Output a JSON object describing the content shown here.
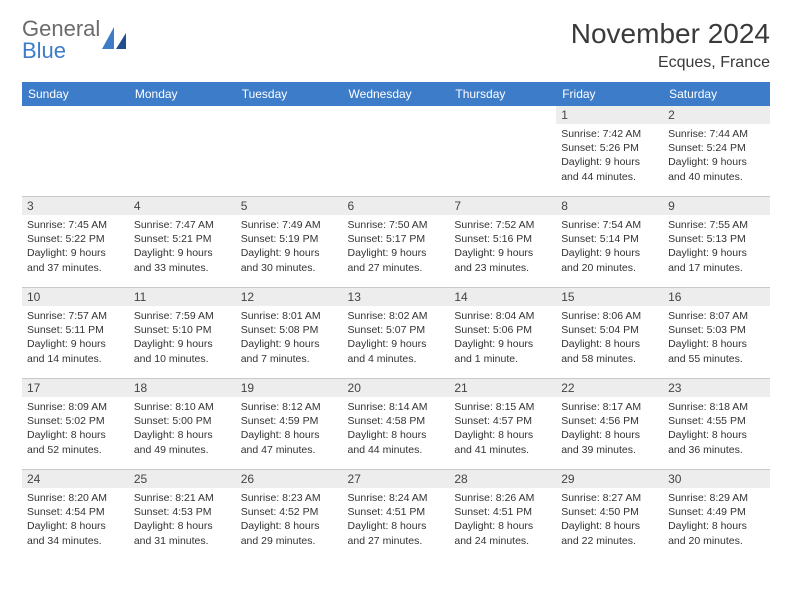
{
  "brand": {
    "name_top": "General",
    "name_bottom": "Blue"
  },
  "title": "November 2024",
  "location": "Ecques, France",
  "colors": {
    "header_bar": "#3d7cc9",
    "header_text": "#ffffff",
    "daynum_bg": "#ededed",
    "grid_line": "#c9c9c9",
    "title_text": "#3a3a3a",
    "brand_gray": "#6b6b6b",
    "brand_blue": "#3d7cc9"
  },
  "day_names": [
    "Sunday",
    "Monday",
    "Tuesday",
    "Wednesday",
    "Thursday",
    "Friday",
    "Saturday"
  ],
  "weeks": [
    [
      {
        "day": "",
        "sunrise": "",
        "sunset": "",
        "daylight": ""
      },
      {
        "day": "",
        "sunrise": "",
        "sunset": "",
        "daylight": ""
      },
      {
        "day": "",
        "sunrise": "",
        "sunset": "",
        "daylight": ""
      },
      {
        "day": "",
        "sunrise": "",
        "sunset": "",
        "daylight": ""
      },
      {
        "day": "",
        "sunrise": "",
        "sunset": "",
        "daylight": ""
      },
      {
        "day": "1",
        "sunrise": "Sunrise: 7:42 AM",
        "sunset": "Sunset: 5:26 PM",
        "daylight": "Daylight: 9 hours and 44 minutes."
      },
      {
        "day": "2",
        "sunrise": "Sunrise: 7:44 AM",
        "sunset": "Sunset: 5:24 PM",
        "daylight": "Daylight: 9 hours and 40 minutes."
      }
    ],
    [
      {
        "day": "3",
        "sunrise": "Sunrise: 7:45 AM",
        "sunset": "Sunset: 5:22 PM",
        "daylight": "Daylight: 9 hours and 37 minutes."
      },
      {
        "day": "4",
        "sunrise": "Sunrise: 7:47 AM",
        "sunset": "Sunset: 5:21 PM",
        "daylight": "Daylight: 9 hours and 33 minutes."
      },
      {
        "day": "5",
        "sunrise": "Sunrise: 7:49 AM",
        "sunset": "Sunset: 5:19 PM",
        "daylight": "Daylight: 9 hours and 30 minutes."
      },
      {
        "day": "6",
        "sunrise": "Sunrise: 7:50 AM",
        "sunset": "Sunset: 5:17 PM",
        "daylight": "Daylight: 9 hours and 27 minutes."
      },
      {
        "day": "7",
        "sunrise": "Sunrise: 7:52 AM",
        "sunset": "Sunset: 5:16 PM",
        "daylight": "Daylight: 9 hours and 23 minutes."
      },
      {
        "day": "8",
        "sunrise": "Sunrise: 7:54 AM",
        "sunset": "Sunset: 5:14 PM",
        "daylight": "Daylight: 9 hours and 20 minutes."
      },
      {
        "day": "9",
        "sunrise": "Sunrise: 7:55 AM",
        "sunset": "Sunset: 5:13 PM",
        "daylight": "Daylight: 9 hours and 17 minutes."
      }
    ],
    [
      {
        "day": "10",
        "sunrise": "Sunrise: 7:57 AM",
        "sunset": "Sunset: 5:11 PM",
        "daylight": "Daylight: 9 hours and 14 minutes."
      },
      {
        "day": "11",
        "sunrise": "Sunrise: 7:59 AM",
        "sunset": "Sunset: 5:10 PM",
        "daylight": "Daylight: 9 hours and 10 minutes."
      },
      {
        "day": "12",
        "sunrise": "Sunrise: 8:01 AM",
        "sunset": "Sunset: 5:08 PM",
        "daylight": "Daylight: 9 hours and 7 minutes."
      },
      {
        "day": "13",
        "sunrise": "Sunrise: 8:02 AM",
        "sunset": "Sunset: 5:07 PM",
        "daylight": "Daylight: 9 hours and 4 minutes."
      },
      {
        "day": "14",
        "sunrise": "Sunrise: 8:04 AM",
        "sunset": "Sunset: 5:06 PM",
        "daylight": "Daylight: 9 hours and 1 minute."
      },
      {
        "day": "15",
        "sunrise": "Sunrise: 8:06 AM",
        "sunset": "Sunset: 5:04 PM",
        "daylight": "Daylight: 8 hours and 58 minutes."
      },
      {
        "day": "16",
        "sunrise": "Sunrise: 8:07 AM",
        "sunset": "Sunset: 5:03 PM",
        "daylight": "Daylight: 8 hours and 55 minutes."
      }
    ],
    [
      {
        "day": "17",
        "sunrise": "Sunrise: 8:09 AM",
        "sunset": "Sunset: 5:02 PM",
        "daylight": "Daylight: 8 hours and 52 minutes."
      },
      {
        "day": "18",
        "sunrise": "Sunrise: 8:10 AM",
        "sunset": "Sunset: 5:00 PM",
        "daylight": "Daylight: 8 hours and 49 minutes."
      },
      {
        "day": "19",
        "sunrise": "Sunrise: 8:12 AM",
        "sunset": "Sunset: 4:59 PM",
        "daylight": "Daylight: 8 hours and 47 minutes."
      },
      {
        "day": "20",
        "sunrise": "Sunrise: 8:14 AM",
        "sunset": "Sunset: 4:58 PM",
        "daylight": "Daylight: 8 hours and 44 minutes."
      },
      {
        "day": "21",
        "sunrise": "Sunrise: 8:15 AM",
        "sunset": "Sunset: 4:57 PM",
        "daylight": "Daylight: 8 hours and 41 minutes."
      },
      {
        "day": "22",
        "sunrise": "Sunrise: 8:17 AM",
        "sunset": "Sunset: 4:56 PM",
        "daylight": "Daylight: 8 hours and 39 minutes."
      },
      {
        "day": "23",
        "sunrise": "Sunrise: 8:18 AM",
        "sunset": "Sunset: 4:55 PM",
        "daylight": "Daylight: 8 hours and 36 minutes."
      }
    ],
    [
      {
        "day": "24",
        "sunrise": "Sunrise: 8:20 AM",
        "sunset": "Sunset: 4:54 PM",
        "daylight": "Daylight: 8 hours and 34 minutes."
      },
      {
        "day": "25",
        "sunrise": "Sunrise: 8:21 AM",
        "sunset": "Sunset: 4:53 PM",
        "daylight": "Daylight: 8 hours and 31 minutes."
      },
      {
        "day": "26",
        "sunrise": "Sunrise: 8:23 AM",
        "sunset": "Sunset: 4:52 PM",
        "daylight": "Daylight: 8 hours and 29 minutes."
      },
      {
        "day": "27",
        "sunrise": "Sunrise: 8:24 AM",
        "sunset": "Sunset: 4:51 PM",
        "daylight": "Daylight: 8 hours and 27 minutes."
      },
      {
        "day": "28",
        "sunrise": "Sunrise: 8:26 AM",
        "sunset": "Sunset: 4:51 PM",
        "daylight": "Daylight: 8 hours and 24 minutes."
      },
      {
        "day": "29",
        "sunrise": "Sunrise: 8:27 AM",
        "sunset": "Sunset: 4:50 PM",
        "daylight": "Daylight: 8 hours and 22 minutes."
      },
      {
        "day": "30",
        "sunrise": "Sunrise: 8:29 AM",
        "sunset": "Sunset: 4:49 PM",
        "daylight": "Daylight: 8 hours and 20 minutes."
      }
    ]
  ]
}
